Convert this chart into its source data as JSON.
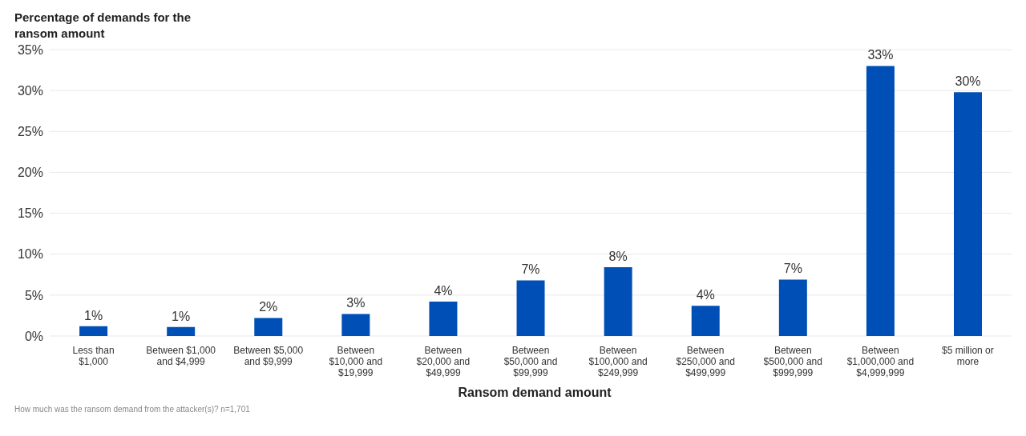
{
  "chart_data": {
    "type": "bar",
    "ylabel": "Percentage of demands for the ransom amount",
    "xlabel": "Ransom demand amount",
    "categories": [
      "Less than $1,000",
      "Between $1,000 and $4,999",
      "Between $5,000 and $9,999",
      "Between $10,000 and $19,999",
      "Between $20,000 and $49,999",
      "Between $50,000 and $99,999",
      "Between $100,000 and $249,999",
      "Between $250,000 and $499,999",
      "Between $500,000 and $999,999",
      "Between $1,000,000 and $4,999,999",
      "$5 million or more"
    ],
    "values": [
      1.2,
      1.1,
      2.2,
      2.7,
      4.2,
      6.8,
      8.4,
      3.7,
      6.9,
      33,
      29.8
    ],
    "value_labels": [
      "1%",
      "1%",
      "2%",
      "3%",
      "4%",
      "7%",
      "8%",
      "4%",
      "7%",
      "33%",
      "30%"
    ],
    "color": "#004fb6",
    "ylim": [
      0,
      35
    ],
    "yticks": [
      {
        "value": 0,
        "label": "0%"
      },
      {
        "value": 5,
        "label": "5%"
      },
      {
        "value": 10,
        "label": "10%"
      },
      {
        "value": 15,
        "label": "15%"
      },
      {
        "value": 20,
        "label": "20%"
      },
      {
        "value": 25,
        "label": "25%"
      },
      {
        "value": 30,
        "label": "30%"
      },
      {
        "value": 35,
        "label": "35%"
      }
    ],
    "grid": "y",
    "annotations": [
      "How much was the ransom demand from the attacker(s)? n=1,701"
    ]
  }
}
